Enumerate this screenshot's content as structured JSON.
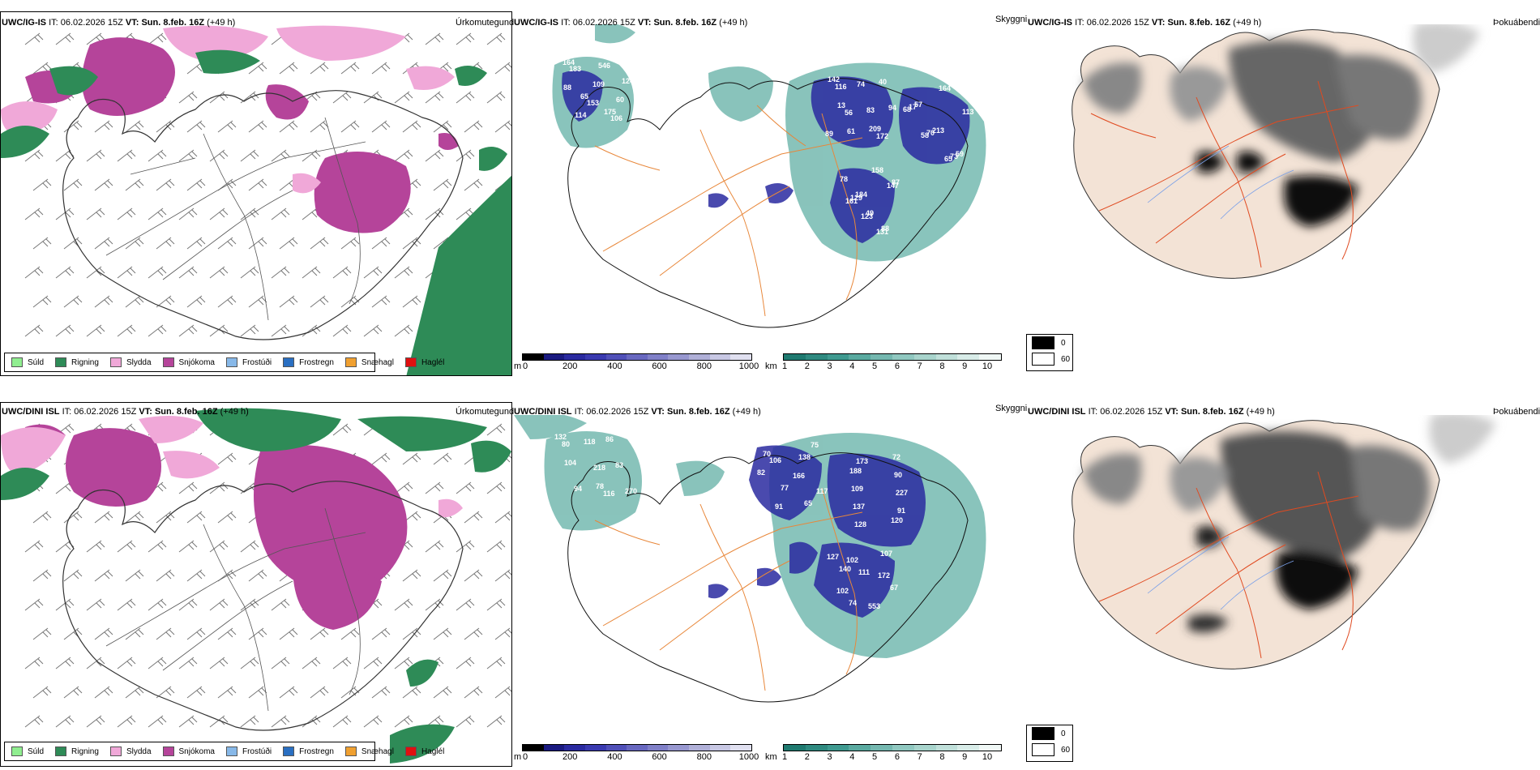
{
  "rows": [
    {
      "model": "UWC/IG-IS",
      "it_label": "IT:",
      "it_value": "06.02.2026 15Z",
      "vt_label": "VT:",
      "vt_value": "Sun. 8.feb. 16Z",
      "lead": "(+49 h)"
    },
    {
      "model": "UWC/DINI ISL",
      "it_label": "IT:",
      "it_value": "06.02.2026 15Z",
      "vt_label": "VT:",
      "vt_value": "Sun. 8.feb. 16Z",
      "lead": "(+49 h)"
    }
  ],
  "panel_titles": {
    "precip": "Úrkomutegund",
    "visibility": "Skyggni",
    "fog": "Þokuábendi"
  },
  "precip_legend": [
    {
      "label": "Súld",
      "color": "#90ee90"
    },
    {
      "label": "Rigning",
      "color": "#2e8b57"
    },
    {
      "label": "Slydda",
      "color": "#f0a8d8"
    },
    {
      "label": "Snjókoma",
      "color": "#b5449a"
    },
    {
      "label": "Frostúði",
      "color": "#87b8e8"
    },
    {
      "label": "Frostregn",
      "color": "#2a6fc2"
    },
    {
      "label": "Snæhagl",
      "color": "#f0a030"
    },
    {
      "label": "Haglél",
      "color": "#e01010"
    }
  ],
  "visibility_scale_m": {
    "unit": "m",
    "ticks": [
      "0",
      "200",
      "400",
      "600",
      "800",
      "1000"
    ],
    "colors": [
      "#000000",
      "#1a1a80",
      "#2a2aa0",
      "#3a3ab0",
      "#5050b8",
      "#6868c0",
      "#8080c8",
      "#9898d0",
      "#b0b0d8",
      "#c8c8e4",
      "#e0e0f0"
    ]
  },
  "visibility_scale_km": {
    "unit": "km",
    "ticks": [
      "1",
      "2",
      "3",
      "4",
      "5",
      "6",
      "7",
      "8",
      "9",
      "10"
    ],
    "colors": [
      "#1f7a70",
      "#2f8a80",
      "#3f9a90",
      "#5aaaa0",
      "#75b8b0",
      "#90c8c0",
      "#a8d4cc",
      "#c0e0da",
      "#d8ece8",
      "#f0f8f6"
    ]
  },
  "cloud_legend": [
    {
      "label": "0",
      "color": "#000000"
    },
    {
      "label": "60",
      "color": "#ffffff"
    }
  ],
  "vis_labels_top": [
    "164",
    "142",
    "57",
    "184",
    "175",
    "209",
    "59",
    "78",
    "65",
    "13",
    "213",
    "88",
    "124",
    "40",
    "17",
    "49",
    "546",
    "61",
    "73",
    "129",
    "114",
    "94",
    "70",
    "87",
    "60",
    "74",
    "68",
    "131",
    "109",
    "89",
    "65",
    "123",
    "183",
    "83",
    "58",
    "161",
    "106",
    "116",
    "113",
    "147",
    "153",
    "172",
    "164",
    "158",
    "88",
    "56"
  ],
  "vis_labels_bottom": [
    "132",
    "70",
    "188",
    "140",
    "78",
    "65",
    "120",
    "107",
    "104",
    "77",
    "109",
    "74",
    "86",
    "82",
    "72",
    "67",
    "94",
    "138",
    "137",
    "111",
    "83",
    "91",
    "90",
    "127",
    "118",
    "117",
    "128",
    "553",
    "270",
    "166",
    "227",
    "102",
    "218",
    "106",
    "173",
    "172",
    "80",
    "75",
    "91",
    "102",
    "116"
  ]
}
